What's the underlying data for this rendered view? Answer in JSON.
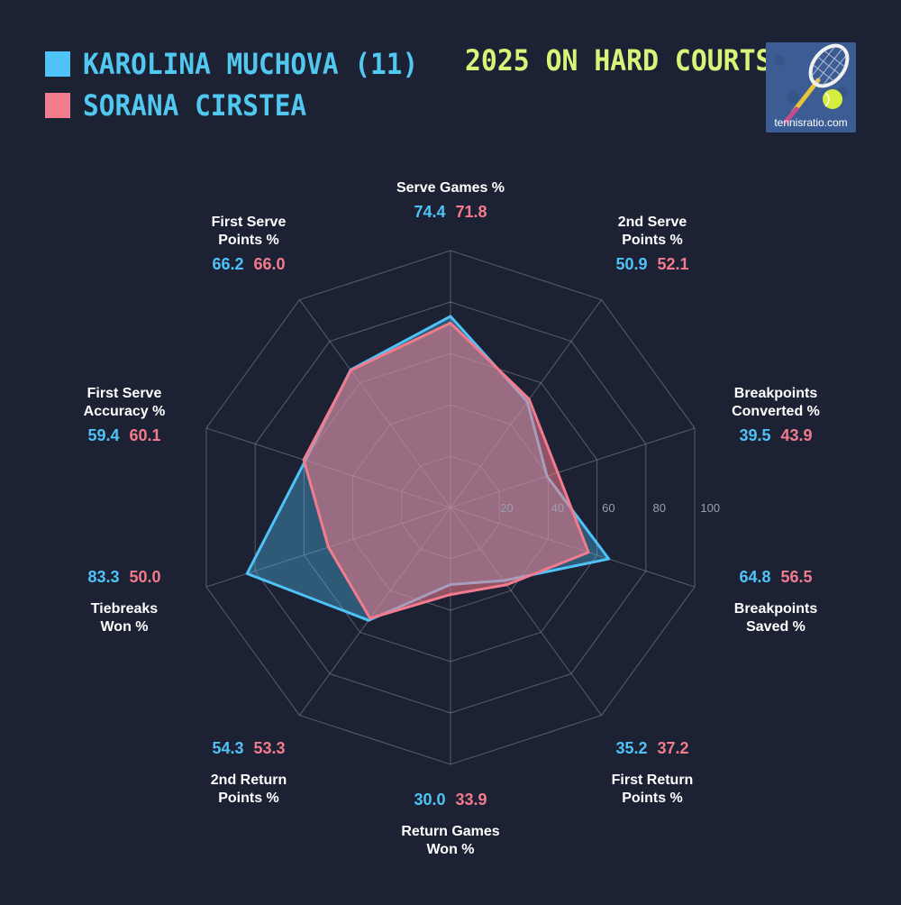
{
  "title": "2025 ON HARD COURTS",
  "logo": {
    "text": "tennisratio.com",
    "icon": "tennis-racket-ball-icon"
  },
  "colors": {
    "background": "#1c2133",
    "player1": "#4fc3f7",
    "player2": "#f27b8d",
    "title": "#d8f57a",
    "grid": "#8a8f9c"
  },
  "chart_data": {
    "type": "radar",
    "title": "2025 ON HARD COURTS",
    "range": [
      0,
      100
    ],
    "ticks": [
      20,
      40,
      60,
      80,
      100
    ],
    "axes": [
      [
        "Serve Games %"
      ],
      [
        "2nd Serve",
        "Points %"
      ],
      [
        "Breakpoints",
        "Converted %"
      ],
      [
        "Breakpoints",
        "Saved %"
      ],
      [
        "First Return",
        "Points %"
      ],
      [
        "Return Games",
        "Won %"
      ],
      [
        "2nd Return",
        "Points %"
      ],
      [
        "Tiebreaks",
        "Won %"
      ],
      [
        "First Serve",
        "Accuracy %"
      ],
      [
        "First Serve",
        "Points %"
      ]
    ],
    "series": [
      {
        "name": "KAROLINA MUCHOVA (11)",
        "color": "#4fc3f7",
        "values": [
          74.4,
          50.9,
          39.5,
          64.8,
          35.2,
          30.0,
          54.3,
          83.3,
          59.4,
          66.2
        ],
        "labels": [
          "74.4",
          "50.9",
          "39.5",
          "64.8",
          "35.2",
          "30.0",
          "54.3",
          "83.3",
          "59.4",
          "66.2"
        ]
      },
      {
        "name": "SORANA CIRSTEA",
        "color": "#f27b8d",
        "values": [
          71.8,
          52.1,
          43.9,
          56.5,
          37.2,
          33.9,
          53.3,
          50.0,
          60.1,
          66.0
        ],
        "labels": [
          "71.8",
          "52.1",
          "43.9",
          "56.5",
          "37.2",
          "33.9",
          "53.3",
          "50.0",
          "60.1",
          "66.0"
        ]
      }
    ]
  }
}
